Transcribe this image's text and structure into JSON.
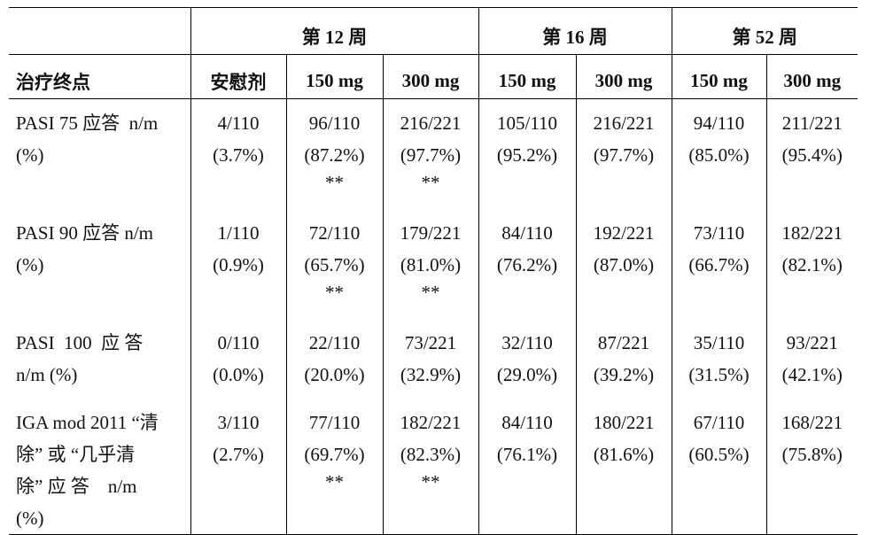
{
  "table": {
    "group_header": [
      "",
      "第 12 周",
      "第 16 周",
      "第 52 周"
    ],
    "header": [
      "治疗终点",
      "安慰剂",
      "150 mg",
      "300 mg",
      "150 mg",
      "300 mg",
      "150 mg",
      "300 mg"
    ],
    "rows": [
      {
        "endpoint": [
          "PASI 75 应答  n/m",
          "(%)"
        ],
        "cells": [
          [
            "4/110",
            "(3.7%)"
          ],
          [
            "96/110",
            "(87.2%)",
            "**"
          ],
          [
            "216/221",
            "(97.7%)",
            "**"
          ],
          [
            "105/110",
            "(95.2%)"
          ],
          [
            "216/221",
            "(97.7%)"
          ],
          [
            "94/110",
            "(85.0%)"
          ],
          [
            "211/221",
            "(95.4%)"
          ]
        ]
      },
      {
        "endpoint": [
          "PASI 90 应答 n/m",
          "(%)"
        ],
        "cells": [
          [
            "1/110",
            "(0.9%)"
          ],
          [
            "72/110",
            "(65.7%)",
            "**"
          ],
          [
            "179/221",
            "(81.0%)",
            "**"
          ],
          [
            "84/110",
            "(76.2%)"
          ],
          [
            "192/221",
            "(87.0%)"
          ],
          [
            "73/110",
            "(66.7%)"
          ],
          [
            "182/221",
            "(82.1%)"
          ]
        ]
      },
      {
        "endpoint": [
          "PASI  100  应 答",
          "n/m (%)"
        ],
        "cells": [
          [
            "0/110",
            "(0.0%)"
          ],
          [
            "22/110",
            "(20.0%)"
          ],
          [
            "73/221",
            "(32.9%)"
          ],
          [
            "32/110",
            "(29.0%)"
          ],
          [
            "87/221",
            "(39.2%)"
          ],
          [
            "35/110",
            "(31.5%)"
          ],
          [
            "93/221",
            "(42.1%)"
          ]
        ]
      },
      {
        "endpoint": [
          "IGA mod 2011 “清",
          "除” 或 “几乎清",
          "除” 应 答    n/m",
          "(%)"
        ],
        "cells": [
          [
            "3/110",
            "(2.7%)"
          ],
          [
            "77/110",
            "(69.7%)",
            "**"
          ],
          [
            "182/221",
            "(82.3%)",
            "**"
          ],
          [
            "84/110",
            "(76.1%)"
          ],
          [
            "180/221",
            "(81.6%)"
          ],
          [
            "67/110",
            "(60.5%)"
          ],
          [
            "168/221",
            "(75.8%)"
          ]
        ]
      }
    ]
  }
}
